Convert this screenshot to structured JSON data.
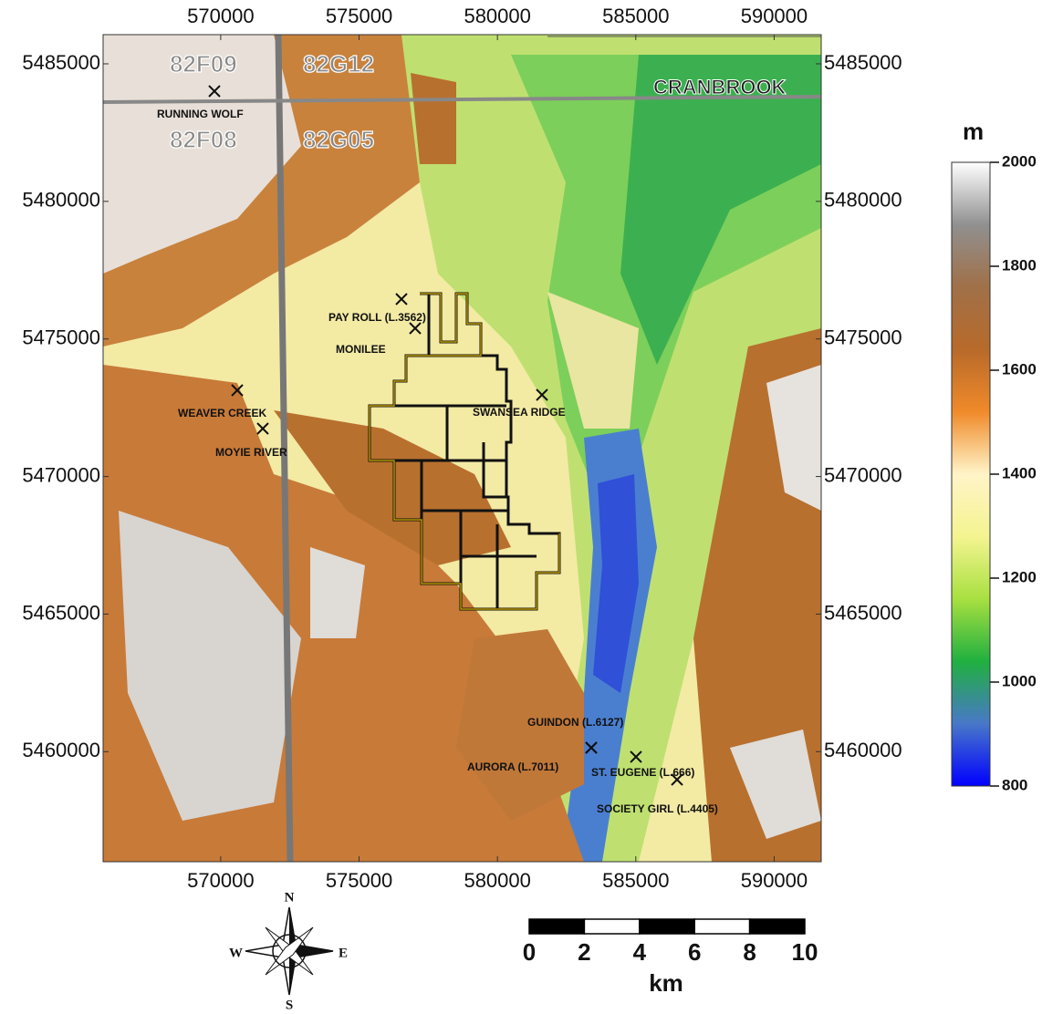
{
  "map": {
    "xlim": [
      565750,
      591700
    ],
    "ylim": [
      5456000,
      5486060
    ],
    "xticks": [
      570000,
      575000,
      580000,
      585000,
      590000
    ],
    "yticks": [
      5460000,
      5465000,
      5470000,
      5475000,
      5480000,
      5485000
    ],
    "sheets": [
      "82F09",
      "82G12",
      "82F08",
      "82G05"
    ],
    "city": "CRANBROOK",
    "places": [
      "RUNNING WOLF",
      "PAY ROLL (L.3562)",
      "MONILEE",
      "WEAVER CREEK",
      "MOYIE RIVER",
      "SWANSEA RIDGE",
      "GUINDON (L.6127)",
      "AURORA (L.7011)",
      "ST. EUGENE (L.666)",
      "SOCIETY GIRL (L.4405)"
    ]
  },
  "colorbar": {
    "unit": "m",
    "lim": [
      800,
      2000
    ],
    "ticks": [
      800,
      1000,
      1200,
      1400,
      1600,
      1800,
      2000
    ],
    "colors": [
      "#0000ff",
      "#4878c8",
      "#20b040",
      "#a8e040",
      "#f4f490",
      "#fff4c8",
      "#f08a2a",
      "#b86a2a",
      "#a07048",
      "#909090",
      "#ffffff"
    ]
  },
  "scale_bar": {
    "ticks": [
      0,
      2,
      4,
      6,
      8,
      10
    ],
    "unit": "km"
  },
  "compass": {
    "N": "N",
    "S": "S",
    "E": "E",
    "W": "W"
  }
}
